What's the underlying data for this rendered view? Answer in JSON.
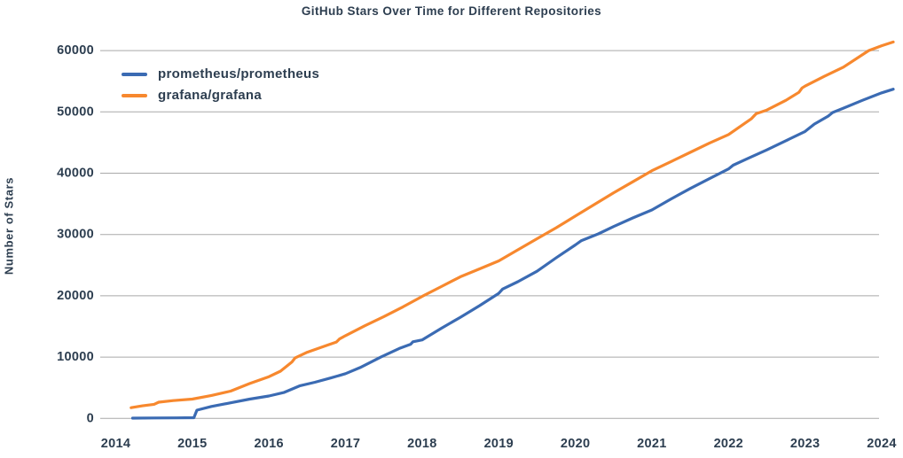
{
  "colors": {
    "text": "#2d3e50",
    "grid": "#a9a9a9",
    "background": "#ffffff",
    "prometheus_line": "#3b6bb3",
    "grafana_line": "#f7882e"
  },
  "chart_data": {
    "type": "line",
    "title": "GitHub Stars Over Time for Different Repositories",
    "xlabel": "",
    "ylabel": "Number of Stars",
    "x_ticks": [
      2014,
      2015,
      2016,
      2017,
      2018,
      2019,
      2020,
      2021,
      2022,
      2023,
      2024
    ],
    "y_ticks": [
      0,
      10000,
      20000,
      30000,
      40000,
      50000,
      60000
    ],
    "xlim": [
      2013.8,
      2024.3
    ],
    "ylim": [
      0,
      62000
    ],
    "grid": "horizontal",
    "legend_position": "upper-left",
    "series": [
      {
        "name": "prometheus/prometheus",
        "color": "#3b6bb3",
        "points": [
          [
            2014.22,
            50
          ],
          [
            2014.5,
            70
          ],
          [
            2014.8,
            90
          ],
          [
            2015.02,
            110
          ],
          [
            2015.06,
            1350
          ],
          [
            2015.25,
            1950
          ],
          [
            2015.5,
            2550
          ],
          [
            2015.75,
            3150
          ],
          [
            2016.0,
            3650
          ],
          [
            2016.2,
            4250
          ],
          [
            2016.4,
            5300
          ],
          [
            2016.6,
            5900
          ],
          [
            2016.81,
            6600
          ],
          [
            2017.0,
            7300
          ],
          [
            2017.19,
            8300
          ],
          [
            2017.46,
            10000
          ],
          [
            2017.7,
            11400
          ],
          [
            2017.85,
            12100
          ],
          [
            2017.88,
            12500
          ],
          [
            2018.0,
            12800
          ],
          [
            2018.25,
            14700
          ],
          [
            2018.5,
            16500
          ],
          [
            2018.75,
            18400
          ],
          [
            2019.0,
            20400
          ],
          [
            2019.05,
            21100
          ],
          [
            2019.25,
            22300
          ],
          [
            2019.5,
            24000
          ],
          [
            2019.75,
            26200
          ],
          [
            2020.0,
            28300
          ],
          [
            2020.08,
            29000
          ],
          [
            2020.3,
            30100
          ],
          [
            2020.5,
            31300
          ],
          [
            2020.75,
            32700
          ],
          [
            2021.0,
            34000
          ],
          [
            2021.25,
            35800
          ],
          [
            2021.5,
            37500
          ],
          [
            2021.75,
            39100
          ],
          [
            2022.0,
            40700
          ],
          [
            2022.06,
            41300
          ],
          [
            2022.25,
            42400
          ],
          [
            2022.5,
            43800
          ],
          [
            2022.75,
            45300
          ],
          [
            2023.0,
            46800
          ],
          [
            2023.12,
            48000
          ],
          [
            2023.3,
            49300
          ],
          [
            2023.36,
            49900
          ],
          [
            2023.5,
            50600
          ],
          [
            2023.75,
            51900
          ],
          [
            2024.0,
            53100
          ],
          [
            2024.15,
            53700
          ]
        ]
      },
      {
        "name": "grafana/grafana",
        "color": "#f7882e",
        "points": [
          [
            2014.2,
            1750
          ],
          [
            2014.35,
            2050
          ],
          [
            2014.5,
            2300
          ],
          [
            2014.56,
            2650
          ],
          [
            2014.75,
            2900
          ],
          [
            2015.0,
            3150
          ],
          [
            2015.25,
            3750
          ],
          [
            2015.5,
            4450
          ],
          [
            2015.75,
            5700
          ],
          [
            2016.0,
            6800
          ],
          [
            2016.15,
            7700
          ],
          [
            2016.3,
            9200
          ],
          [
            2016.34,
            9850
          ],
          [
            2016.5,
            10800
          ],
          [
            2016.75,
            11900
          ],
          [
            2016.88,
            12450
          ],
          [
            2016.92,
            12950
          ],
          [
            2017.0,
            13500
          ],
          [
            2017.25,
            15100
          ],
          [
            2017.5,
            16600
          ],
          [
            2017.75,
            18200
          ],
          [
            2018.0,
            19900
          ],
          [
            2018.25,
            21500
          ],
          [
            2018.5,
            23100
          ],
          [
            2018.75,
            24400
          ],
          [
            2019.0,
            25700
          ],
          [
            2019.25,
            27500
          ],
          [
            2019.5,
            29300
          ],
          [
            2019.75,
            31100
          ],
          [
            2020.0,
            33000
          ],
          [
            2020.25,
            34900
          ],
          [
            2020.5,
            36800
          ],
          [
            2020.75,
            38600
          ],
          [
            2021.0,
            40400
          ],
          [
            2021.25,
            41900
          ],
          [
            2021.5,
            43400
          ],
          [
            2021.75,
            44900
          ],
          [
            2022.0,
            46300
          ],
          [
            2022.3,
            48900
          ],
          [
            2022.36,
            49700
          ],
          [
            2022.5,
            50300
          ],
          [
            2022.75,
            51900
          ],
          [
            2022.92,
            53200
          ],
          [
            2022.96,
            53900
          ],
          [
            2023.0,
            54200
          ],
          [
            2023.25,
            55800
          ],
          [
            2023.5,
            57300
          ],
          [
            2023.83,
            60000
          ],
          [
            2024.0,
            60800
          ],
          [
            2024.15,
            61400
          ]
        ]
      }
    ]
  }
}
